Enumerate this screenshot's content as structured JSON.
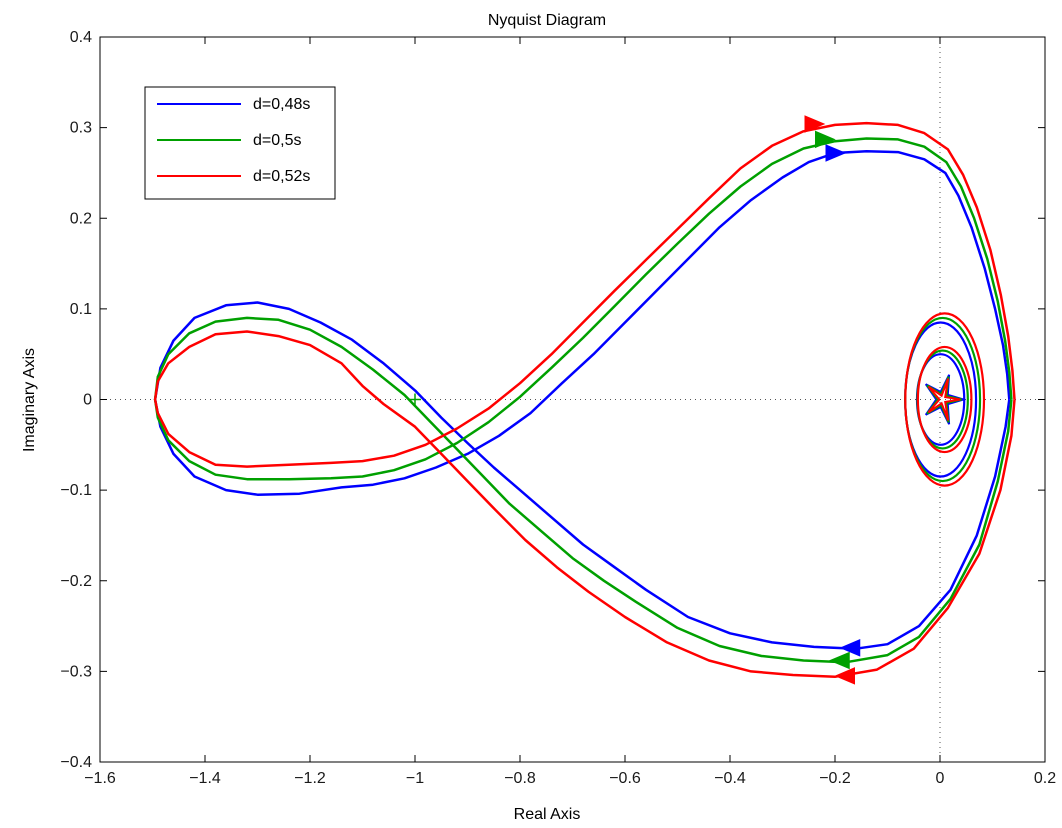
{
  "chart_data": {
    "type": "line",
    "title": "Nyquist Diagram",
    "xlabel": "Real Axis",
    "ylabel": "Imaginary Axis",
    "xlim": [
      -1.6,
      0.2
    ],
    "ylim": [
      -0.4,
      0.4
    ],
    "xticks": [
      -1.6,
      -1.4,
      -1.2,
      -1,
      -0.8,
      -0.6,
      -0.4,
      -0.2,
      0,
      0.2
    ],
    "yticks": [
      -0.4,
      -0.3,
      -0.2,
      -0.1,
      0,
      0.1,
      0.2,
      0.3,
      0.4
    ],
    "xtick_labels": [
      "−1.6",
      "−1.4",
      "−1.2",
      "−1",
      "−0.8",
      "−0.6",
      "−0.4",
      "−0.2",
      "0",
      "0.2"
    ],
    "ytick_labels": [
      "−0.4",
      "−0.3",
      "−0.2",
      "−0.1",
      "0",
      "0.1",
      "0.2",
      "0.3",
      "0.4"
    ],
    "grid": false,
    "zero_lines": "dotted",
    "legend_position": "top-left",
    "critical_point": [
      -1,
      0
    ],
    "series": [
      {
        "name": "d=0,48s",
        "color": "#0000ff",
        "points": [
          [
            0.132,
            0
          ],
          [
            0.128,
            0.028
          ],
          [
            0.12,
            0.06
          ],
          [
            0.105,
            0.1
          ],
          [
            0.085,
            0.145
          ],
          [
            0.06,
            0.19
          ],
          [
            0.035,
            0.225
          ],
          [
            0.01,
            0.25
          ],
          [
            -0.03,
            0.265
          ],
          [
            -0.08,
            0.273
          ],
          [
            -0.14,
            0.274
          ],
          [
            -0.2,
            0.272
          ],
          [
            -0.25,
            0.262
          ],
          [
            -0.3,
            0.245
          ],
          [
            -0.36,
            0.22
          ],
          [
            -0.42,
            0.19
          ],
          [
            -0.48,
            0.155
          ],
          [
            -0.54,
            0.12
          ],
          [
            -0.6,
            0.085
          ],
          [
            -0.66,
            0.05
          ],
          [
            -0.72,
            0.018
          ],
          [
            -0.78,
            -0.015
          ],
          [
            -0.84,
            -0.04
          ],
          [
            -0.9,
            -0.06
          ],
          [
            -0.96,
            -0.075
          ],
          [
            -1.02,
            -0.087
          ],
          [
            -1.08,
            -0.094
          ],
          [
            -1.14,
            -0.097
          ],
          [
            -1.22,
            -0.104
          ],
          [
            -1.3,
            -0.105
          ],
          [
            -1.36,
            -0.1
          ],
          [
            -1.42,
            -0.085
          ],
          [
            -1.46,
            -0.06
          ],
          [
            -1.485,
            -0.03
          ],
          [
            -1.495,
            0
          ],
          [
            -1.485,
            0.035
          ],
          [
            -1.46,
            0.065
          ],
          [
            -1.42,
            0.09
          ],
          [
            -1.36,
            0.104
          ],
          [
            -1.3,
            0.107
          ],
          [
            -1.24,
            0.1
          ],
          [
            -1.18,
            0.085
          ],
          [
            -1.12,
            0.066
          ],
          [
            -1.06,
            0.04
          ],
          [
            -1.0,
            0.01
          ],
          [
            -0.95,
            -0.02
          ],
          [
            -0.9,
            -0.048
          ],
          [
            -0.85,
            -0.075
          ],
          [
            -0.8,
            -0.1
          ],
          [
            -0.74,
            -0.13
          ],
          [
            -0.68,
            -0.16
          ],
          [
            -0.62,
            -0.185
          ],
          [
            -0.56,
            -0.21
          ],
          [
            -0.48,
            -0.24
          ],
          [
            -0.4,
            -0.258
          ],
          [
            -0.32,
            -0.268
          ],
          [
            -0.24,
            -0.273
          ],
          [
            -0.16,
            -0.275
          ],
          [
            -0.1,
            -0.27
          ],
          [
            -0.04,
            -0.25
          ],
          [
            0.02,
            -0.21
          ],
          [
            0.07,
            -0.15
          ],
          [
            0.105,
            -0.085
          ],
          [
            0.125,
            -0.03
          ],
          [
            0.132,
            0
          ]
        ],
        "arrows": [
          {
            "at": [
              -0.2,
              0.272
            ],
            "direction": "right"
          },
          {
            "at": [
              -0.17,
              -0.274
            ],
            "direction": "left"
          }
        ]
      },
      {
        "name": "d=0,5s",
        "color": "#00a000",
        "points": [
          [
            0.136,
            0
          ],
          [
            0.132,
            0.03
          ],
          [
            0.124,
            0.065
          ],
          [
            0.11,
            0.108
          ],
          [
            0.09,
            0.155
          ],
          [
            0.065,
            0.2
          ],
          [
            0.04,
            0.235
          ],
          [
            0.012,
            0.262
          ],
          [
            -0.03,
            0.279
          ],
          [
            -0.08,
            0.287
          ],
          [
            -0.14,
            0.288
          ],
          [
            -0.2,
            0.285
          ],
          [
            -0.26,
            0.277
          ],
          [
            -0.32,
            0.26
          ],
          [
            -0.38,
            0.235
          ],
          [
            -0.44,
            0.205
          ],
          [
            -0.5,
            0.172
          ],
          [
            -0.56,
            0.138
          ],
          [
            -0.62,
            0.103
          ],
          [
            -0.68,
            0.068
          ],
          [
            -0.74,
            0.035
          ],
          [
            -0.8,
            0.003
          ],
          [
            -0.86,
            -0.025
          ],
          [
            -0.92,
            -0.048
          ],
          [
            -0.98,
            -0.066
          ],
          [
            -1.04,
            -0.078
          ],
          [
            -1.1,
            -0.085
          ],
          [
            -1.16,
            -0.087
          ],
          [
            -1.24,
            -0.088
          ],
          [
            -1.32,
            -0.088
          ],
          [
            -1.38,
            -0.083
          ],
          [
            -1.43,
            -0.068
          ],
          [
            -1.47,
            -0.045
          ],
          [
            -1.49,
            -0.02
          ],
          [
            -1.495,
            0
          ],
          [
            -1.49,
            0.025
          ],
          [
            -1.47,
            0.05
          ],
          [
            -1.43,
            0.073
          ],
          [
            -1.38,
            0.086
          ],
          [
            -1.32,
            0.09
          ],
          [
            -1.26,
            0.088
          ],
          [
            -1.2,
            0.077
          ],
          [
            -1.14,
            0.058
          ],
          [
            -1.08,
            0.033
          ],
          [
            -1.02,
            0.005
          ],
          [
            -0.97,
            -0.025
          ],
          [
            -0.92,
            -0.055
          ],
          [
            -0.87,
            -0.085
          ],
          [
            -0.82,
            -0.115
          ],
          [
            -0.76,
            -0.145
          ],
          [
            -0.7,
            -0.175
          ],
          [
            -0.64,
            -0.2
          ],
          [
            -0.58,
            -0.223
          ],
          [
            -0.5,
            -0.252
          ],
          [
            -0.42,
            -0.272
          ],
          [
            -0.34,
            -0.283
          ],
          [
            -0.26,
            -0.288
          ],
          [
            -0.18,
            -0.29
          ],
          [
            -0.1,
            -0.282
          ],
          [
            -0.04,
            -0.262
          ],
          [
            0.02,
            -0.22
          ],
          [
            0.075,
            -0.16
          ],
          [
            0.11,
            -0.09
          ],
          [
            0.13,
            -0.035
          ],
          [
            0.136,
            0
          ]
        ],
        "arrows": [
          {
            "at": [
              -0.22,
              0.287
            ],
            "direction": "right"
          },
          {
            "at": [
              -0.19,
              -0.288
            ],
            "direction": "left"
          }
        ]
      },
      {
        "name": "d=0,52s",
        "color": "#ff0000",
        "points": [
          [
            0.142,
            0
          ],
          [
            0.138,
            0.032
          ],
          [
            0.13,
            0.07
          ],
          [
            0.116,
            0.115
          ],
          [
            0.096,
            0.165
          ],
          [
            0.07,
            0.212
          ],
          [
            0.044,
            0.248
          ],
          [
            0.015,
            0.276
          ],
          [
            -0.03,
            0.294
          ],
          [
            -0.08,
            0.303
          ],
          [
            -0.14,
            0.305
          ],
          [
            -0.2,
            0.303
          ],
          [
            -0.26,
            0.296
          ],
          [
            -0.32,
            0.28
          ],
          [
            -0.38,
            0.255
          ],
          [
            -0.44,
            0.222
          ],
          [
            -0.5,
            0.188
          ],
          [
            -0.56,
            0.154
          ],
          [
            -0.62,
            0.12
          ],
          [
            -0.68,
            0.085
          ],
          [
            -0.74,
            0.05
          ],
          [
            -0.8,
            0.018
          ],
          [
            -0.86,
            -0.01
          ],
          [
            -0.92,
            -0.032
          ],
          [
            -0.98,
            -0.05
          ],
          [
            -1.04,
            -0.062
          ],
          [
            -1.1,
            -0.068
          ],
          [
            -1.16,
            -0.07
          ],
          [
            -1.24,
            -0.072
          ],
          [
            -1.32,
            -0.074
          ],
          [
            -1.38,
            -0.072
          ],
          [
            -1.43,
            -0.058
          ],
          [
            -1.47,
            -0.038
          ],
          [
            -1.49,
            -0.015
          ],
          [
            -1.495,
            0
          ],
          [
            -1.49,
            0.02
          ],
          [
            -1.47,
            0.04
          ],
          [
            -1.43,
            0.058
          ],
          [
            -1.38,
            0.072
          ],
          [
            -1.32,
            0.075
          ],
          [
            -1.26,
            0.07
          ],
          [
            -1.2,
            0.06
          ],
          [
            -1.14,
            0.04
          ],
          [
            -1.1,
            0.015
          ],
          [
            -1.06,
            -0.005
          ],
          [
            -1.0,
            -0.03
          ],
          [
            -0.95,
            -0.06
          ],
          [
            -0.9,
            -0.09
          ],
          [
            -0.85,
            -0.12
          ],
          [
            -0.79,
            -0.155
          ],
          [
            -0.73,
            -0.185
          ],
          [
            -0.67,
            -0.212
          ],
          [
            -0.6,
            -0.24
          ],
          [
            -0.52,
            -0.268
          ],
          [
            -0.44,
            -0.288
          ],
          [
            -0.36,
            -0.3
          ],
          [
            -0.28,
            -0.304
          ],
          [
            -0.2,
            -0.306
          ],
          [
            -0.12,
            -0.298
          ],
          [
            -0.05,
            -0.275
          ],
          [
            0.015,
            -0.23
          ],
          [
            0.075,
            -0.17
          ],
          [
            0.115,
            -0.1
          ],
          [
            0.136,
            -0.04
          ],
          [
            0.142,
            0
          ]
        ],
        "arrows": [
          {
            "at": [
              -0.24,
              0.304
            ],
            "direction": "right"
          },
          {
            "at": [
              -0.18,
              -0.305
            ],
            "direction": "left"
          }
        ]
      }
    ]
  }
}
